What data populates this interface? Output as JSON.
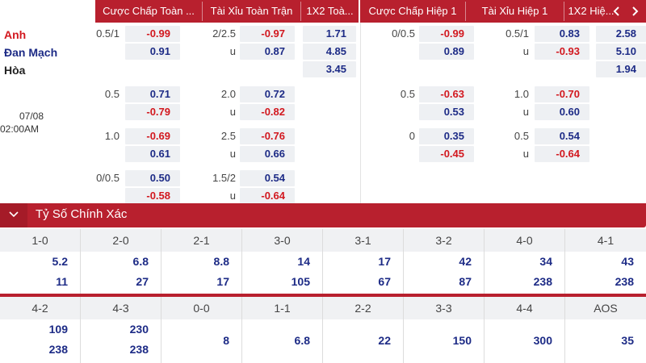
{
  "header": {
    "columns": [
      "Cược Chấp Toàn ...",
      "Tài Xỉu Toàn Trận",
      "1X2 Toà...",
      "Cược Chấp Hiệp 1",
      "Tài Xỉu Hiệp 1",
      "1X2 Hiệ..."
    ]
  },
  "match": {
    "home": "Anh",
    "away": "Đan Mạch",
    "draw": "Hòa",
    "date": "07/08",
    "time": "02:00AM"
  },
  "fulltime": {
    "handicap": [
      {
        "line": "0.5/1",
        "home": "-0.99",
        "away": "0.91"
      },
      {
        "line": "0.5",
        "home": "0.71",
        "away": "-0.79"
      },
      {
        "line": "1.0",
        "home": "-0.69",
        "away": "0.61"
      },
      {
        "line": "0/0.5",
        "home": "0.50",
        "away": "-0.58"
      }
    ],
    "overunder": [
      {
        "line": "2/2.5",
        "under_label": "u",
        "over": "-0.97",
        "under": "0.87"
      },
      {
        "line": "2.0",
        "under_label": "u",
        "over": "0.72",
        "under": "-0.82"
      },
      {
        "line": "2.5",
        "under_label": "u",
        "over": "-0.76",
        "under": "0.66"
      },
      {
        "line": "1.5/2",
        "under_label": "u",
        "over": "0.54",
        "under": "-0.64"
      }
    ],
    "x12": {
      "home": "1.71",
      "away": "4.85",
      "draw": "3.45"
    }
  },
  "firsthalf": {
    "handicap": [
      {
        "line": "0/0.5",
        "home": "-0.99",
        "away": "0.89"
      },
      {
        "line": "0.5",
        "home": "-0.63",
        "away": "0.53"
      },
      {
        "line": "0",
        "home": "0.35",
        "away": "-0.45"
      }
    ],
    "overunder": [
      {
        "line": "0.5/1",
        "under_label": "u",
        "over": "0.83",
        "under": "-0.93"
      },
      {
        "line": "1.0",
        "under_label": "u",
        "over": "-0.70",
        "under": "0.60"
      },
      {
        "line": "0.5",
        "under_label": "u",
        "over": "0.54",
        "under": "-0.64"
      }
    ],
    "x12": {
      "home": "2.58",
      "away": "5.10",
      "draw": "1.94"
    }
  },
  "correct_score": {
    "title": "Tỷ Số Chính Xác",
    "row1": [
      {
        "score": "1-0",
        "home": "5.2",
        "away": "11"
      },
      {
        "score": "2-0",
        "home": "6.8",
        "away": "27"
      },
      {
        "score": "2-1",
        "home": "8.8",
        "away": "17"
      },
      {
        "score": "3-0",
        "home": "14",
        "away": "105"
      },
      {
        "score": "3-1",
        "home": "17",
        "away": "67"
      },
      {
        "score": "3-2",
        "home": "42",
        "away": "87"
      },
      {
        "score": "4-0",
        "home": "34",
        "away": "238"
      },
      {
        "score": "4-1",
        "home": "43",
        "away": "238"
      }
    ],
    "row2": [
      {
        "score": "4-2",
        "home": "109",
        "away": "238"
      },
      {
        "score": "4-3",
        "home": "230",
        "away": "238"
      },
      {
        "score": "0-0",
        "value": "8"
      },
      {
        "score": "1-1",
        "value": "6.8"
      },
      {
        "score": "2-2",
        "value": "22"
      },
      {
        "score": "3-3",
        "value": "150"
      },
      {
        "score": "4-4",
        "value": "300"
      },
      {
        "score": "AOS",
        "value": "35"
      }
    ]
  },
  "colors": {
    "accent": "#b8202e",
    "positive": "#1d2b86",
    "negative": "#d2181f",
    "cell_bg": "#eef0f3"
  },
  "icons": {
    "header_nav": "chevron-left-icon",
    "header_nav_right": "chevron-right-icon",
    "section_toggle": "chevron-down-icon"
  }
}
